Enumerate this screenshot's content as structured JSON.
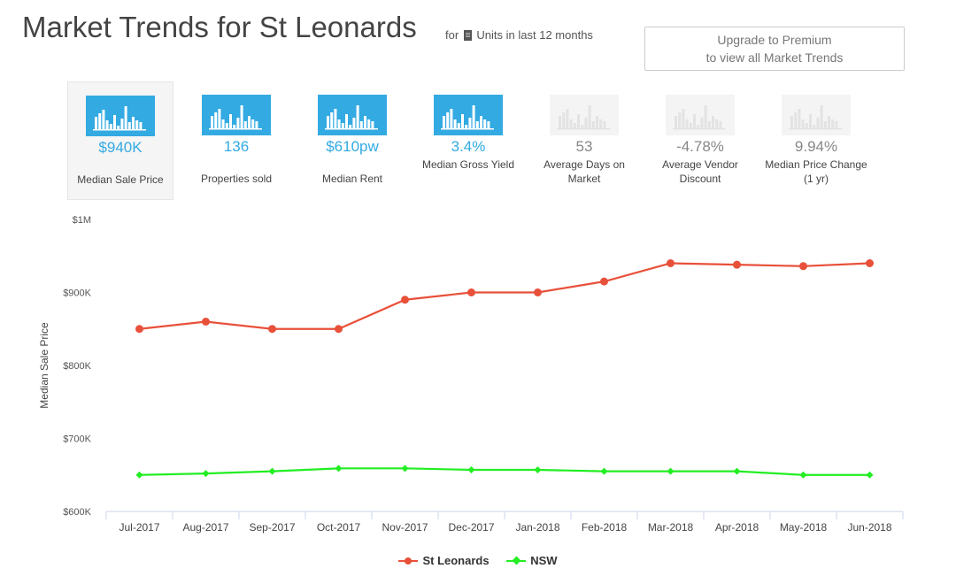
{
  "header": {
    "title": "Market Trends for St Leonards",
    "subtitle_prefix": "for",
    "subtitle_icon": "building-icon",
    "subtitle_suffix": "Units in last 12 months",
    "premium_line1": "Upgrade to Premium",
    "premium_line2": "to view all Market Trends"
  },
  "stats": [
    {
      "value": "$940K",
      "label": "Median Sale Price",
      "locked": false,
      "selected": true
    },
    {
      "value": "136",
      "label": "Properties sold",
      "locked": false,
      "selected": false
    },
    {
      "value": "$610pw",
      "label": "Median Rent",
      "locked": false,
      "selected": false
    },
    {
      "value": "3.4%",
      "label": "Median Gross Yield",
      "locked": false,
      "selected": false
    },
    {
      "value": "53",
      "label": "Average Days on Market",
      "locked": true,
      "selected": false
    },
    {
      "value": "-4.78%",
      "label": "Average Vendor Discount",
      "locked": true,
      "selected": false
    },
    {
      "value": "9.94%",
      "label": "Median Price Change (1 yr)",
      "locked": true,
      "selected": false
    }
  ],
  "colors": {
    "accent": "#33aae2",
    "st_leonards": "#e8503a",
    "nsw": "#22ee22"
  },
  "chart_data": {
    "type": "line",
    "ylabel": "Median Sale Price",
    "xlabel": "",
    "ylim": [
      600000,
      1000000
    ],
    "yticks": [
      600000,
      700000,
      800000,
      900000,
      1000000
    ],
    "ytick_labels": [
      "$600K",
      "$700K",
      "$800K",
      "$900K",
      "$1M"
    ],
    "categories": [
      "Jul-2017",
      "Aug-2017",
      "Sep-2017",
      "Oct-2017",
      "Nov-2017",
      "Dec-2017",
      "Jan-2018",
      "Feb-2018",
      "Mar-2018",
      "Apr-2018",
      "May-2018",
      "Jun-2018"
    ],
    "series": [
      {
        "name": "St Leonards",
        "color": "#e8503a",
        "marker": "circle",
        "values": [
          850000,
          860000,
          850000,
          850000,
          890000,
          900000,
          900000,
          915000,
          940000,
          938000,
          936000,
          940000
        ]
      },
      {
        "name": "NSW",
        "color": "#22ee22",
        "marker": "diamond",
        "values": [
          650000,
          652000,
          655000,
          659000,
          659000,
          657000,
          657000,
          655000,
          655000,
          655000,
          650000,
          650000
        ]
      }
    ],
    "grid": false,
    "legend": "bottom-center"
  }
}
